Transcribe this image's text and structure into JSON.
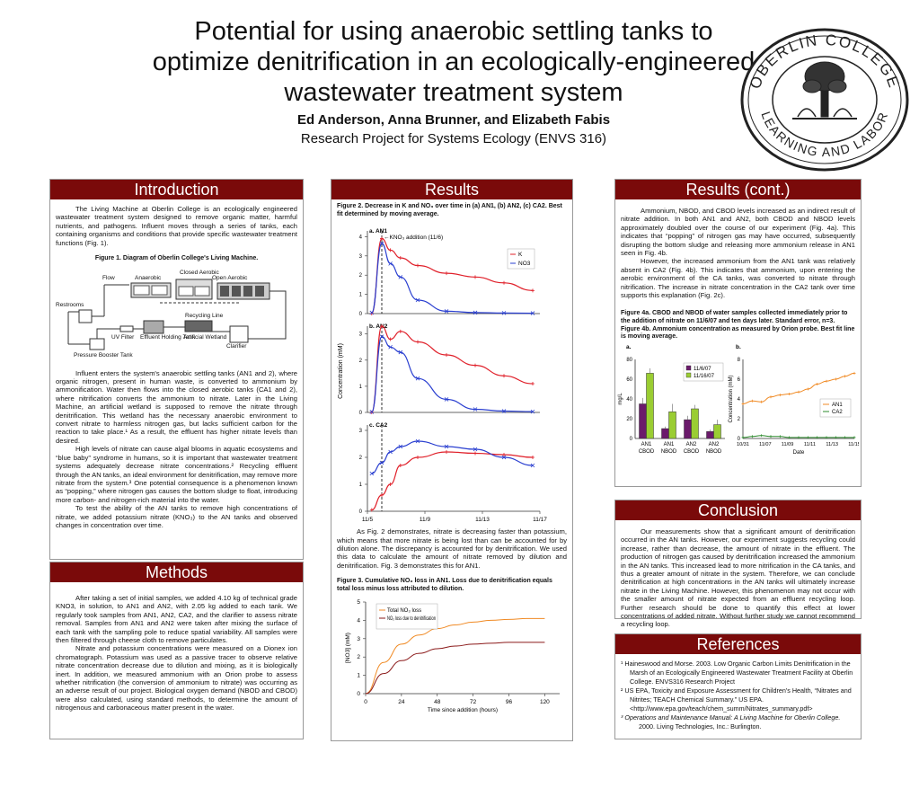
{
  "title": "Potential for using anaerobic settling tanks to optimize denitrification in an ecologically-engineered wastewater treatment system",
  "authors": "Ed Anderson, Anna Brunner, and Elizabeth Fabis",
  "course": "Research Project for Systems Ecology (ENVS 316)",
  "seal": {
    "outer_text": "OBERLIN COLLEGE",
    "inner_text": "LEARNING AND LABOR"
  },
  "intro": {
    "heading": "Introduction",
    "p1": "The Living Machine at Oberlin College is an ecologically engineered wastewater treatment system designed to remove organic matter, harmful nutrients, and pathogens. Influent moves through a series of tanks, each containing organisms and conditions that provide specific wastewater treatment functions (Fig. 1).",
    "fig1_caption": "Figure 1. Diagram of Oberlin College's Living Machine.",
    "fig1_labels": {
      "restrooms": "Restrooms",
      "flow": "Flow",
      "anaerobic": "Anaerobic",
      "closed_aerobic": "Closed Aerobic",
      "open_aerobic": "Open Aerobic",
      "recycling": "Recycling Line",
      "uv": "UV Filter",
      "effluent": "Effluent Holding Tank",
      "wetland": "Artificial Wetland",
      "clarifier": "Clarifier",
      "pressure": "Pressure Booster Tank"
    },
    "p2": "Influent enters the system's anaerobic settling tanks (AN1 and 2), where organic nitrogen, present in human waste, is converted to ammonium by ammonification. Water then flows into the closed aerobic tanks (CA1 and 2), where nitrification converts the ammonium to nitrate. Later in the Living Machine, an artificial wetland is supposed to remove the nitrate through denitrification. This wetland has the necessary anaerobic environment to convert nitrate to harmless nitrogen gas, but lacks sufficient carbon for the reaction to take place.¹ As a result, the effluent has higher nitrate levels than desired.",
    "p3": "High levels of nitrate can cause algal blooms in aquatic ecosystems and “blue baby” syndrome in humans, so it is important that wastewater treatment systems adequately decrease nitrate concentrations.² Recycling effluent through the AN tanks, an ideal environment for denitrification, may remove more nitrate from the system.³ One potential consequence is a phenomenon known as “popping,” where nitrogen gas causes the bottom sludge to float, introducing more carbon- and nitrogen-rich material into the water.",
    "p4": "To test the ability of the AN tanks to remove high concentrations of nitrate, we added potassium nitrate (KNO₃) to the AN tanks and observed changes in concentration over time."
  },
  "methods": {
    "heading": "Methods",
    "p1": "After taking a set of initial samples, we added 4.10 kg of technical grade KNO3, in solution, to AN1 and AN2, with 2.05 kg added to each tank. We regularly took samples from AN1, AN2, CA2, and the clarifier to assess nitrate removal. Samples from AN1 and AN2 were taken after mixing the surface of each tank with the sampling pole to reduce spatial variability. All samples were then filtered through cheese cloth to remove particulates.",
    "p2": "Nitrate and potassium concentrations were measured on a Dionex ion chromatograph. Potassium was used as a passive tracer to observe relative nitrate concentration decrease due to dilution and mixing, as it is biologically inert. In addition, we measured ammonium with an Orion probe to assess whether nitrification (the conversion of ammonium to nitrate) was occurring as an adverse result of our project. Biological oxygen demand (NBOD and CBOD) were also calculated, using standard methods, to determine the amount of nitrogenous and carbonaceous matter present in the water."
  },
  "results": {
    "heading": "Results",
    "fig2_caption": "Figure 2. Decrease in K and NO₃ over time in (a) AN1, (b) AN2, (c) CA2. Best fit determined by moving average.",
    "para": "As Fig. 2 demonstrates, nitrate is decreasing faster than potassium, which means that more nitrate is being lost than can be accounted for by dilution alone. The discrepancy is accounted for by denitrification. We used this data to calculate the amount of nitrate removed by dilution and denitrification. Fig. 3 demonstrates this for AN1.",
    "fig3_caption": "Figure 3. Cumulative NO₃ loss in AN1. Loss due to denitrification equals total loss minus loss attributed to dilution."
  },
  "results2": {
    "heading": "Results (cont.)",
    "p1": "Ammonium, NBOD, and CBOD levels increased as an indirect result of nitrate addition. In both AN1 and AN2, both CBOD and NBOD levels approximately doubled over the course of our experiment (Fig. 4a). This indicates that “popping” of nitrogen gas may have occurred, subsequently disrupting the bottom sludge and releasing more ammonium release in AN1 seen in Fig. 4b.",
    "p2": "However, the increased ammonium from the AN1 tank was relatively absent in CA2 (Fig. 4b). This indicates that ammonium, upon entering the aerobic environment of the CA tanks, was converted to nitrate through nitrification. The increase in nitrate concentration in the CA2 tank over time supports this explanation (Fig. 2c).",
    "fig4_caption": "Figure 4a. CBOD and NBOD of water samples collected immediately prior to the addition of nitrate on 11/6/07 and ten days later. Standard error, n=3. Figure 4b. Ammonium concentration as measured by Orion probe. Best fit line is moving average."
  },
  "conclusion": {
    "heading": "Conclusion",
    "p1": "Our measurements show that a significant amount of denitrification occurred in the AN tanks. However, our experiment suggests recycling could increase, rather than decrease, the amount of nitrate in the effluent. The production of nitrogen gas caused by denitrification increased the ammonium in the AN tanks. This increased lead to more nitrification in the CA tanks, and thus a greater amount of nitrate in the system. Therefore, we can conclude denitrification at high concentrations in the AN tanks will ultimately increase nitrate in the Living Machine. However, this phenomenon may not occur with the smaller amount of nitrate expected from an effluent recycling loop. Further research should be done to quantify this effect at lower concentrations of added nitrate. Without further study we cannot recommend a recycling loop."
  },
  "references": {
    "heading": "References",
    "r1": "¹ Haineswood and Morse.  2003.  Low Organic Carbon Limits Denitrification in the Marsh of an Ecologically Engineered Wastewater Treatment Facility at Oberlin College.  ENVS316 Research Project",
    "r2": "² US EPA, Toxicity and Exposure Assessment for Children's Health, “Nitrates and Nitrites; TEACH Chemical Summary.” US EPA. <http://www.epa.gov/teach/chem_summ/Nitrates_summary.pdf>",
    "r3a": "³ Operations and Maintenance Manual: A Living Machine for Oberlin College.",
    "r3b": "2000. Living Technologies, Inc.: Burlington."
  },
  "colors": {
    "banner": "#7a0a0a",
    "k": "#e0202a",
    "no3": "#2a3fd0",
    "orange": "#f08a24",
    "green": "#2e8b2e",
    "purple": "#6b1a6b",
    "lime": "#9acd32"
  },
  "chart_data": [
    {
      "type": "line",
      "title": "a. AN1",
      "ylabel": "Concentration (mM)",
      "xlabel": "",
      "ylim": [
        0,
        4.3
      ],
      "x_ticks": [
        "11/5",
        "11/9",
        "11/13",
        "11/17"
      ],
      "annotation": "←KNO₃ addition (11/6)",
      "series": [
        {
          "name": "K",
          "x": [
            5.3,
            6.0,
            6.6,
            7.3,
            8.5,
            10.5,
            12.5,
            14.5,
            16.5
          ],
          "values": [
            0.0,
            3.9,
            3.3,
            2.9,
            2.5,
            2.1,
            1.9,
            1.6,
            1.2
          ]
        },
        {
          "name": "NO3",
          "x": [
            5.3,
            6.0,
            6.6,
            7.3,
            8.5,
            10.5,
            12.5,
            14.5,
            16.5
          ],
          "values": [
            0.05,
            3.65,
            2.6,
            1.9,
            0.7,
            0.12,
            0.05,
            0.03,
            0.02
          ]
        }
      ]
    },
    {
      "type": "line",
      "title": "b. AN2",
      "ylabel": "Concentration (mM)",
      "ylim": [
        0,
        3.3
      ],
      "x_ticks": [
        "11/5",
        "11/9",
        "11/13",
        "11/17"
      ],
      "series": [
        {
          "name": "K",
          "x": [
            5.3,
            6.0,
            6.6,
            7.3,
            8.5,
            10.5,
            12.5,
            14.5,
            16.5
          ],
          "values": [
            0.0,
            3.3,
            2.8,
            3.1,
            2.7,
            2.2,
            1.8,
            1.4,
            1.1
          ]
        },
        {
          "name": "NO3",
          "x": [
            5.3,
            6.0,
            6.6,
            7.3,
            8.5,
            10.5,
            12.5,
            14.5,
            16.5
          ],
          "values": [
            0.02,
            2.9,
            2.5,
            2.3,
            1.3,
            0.5,
            0.12,
            0.05,
            0.03
          ]
        }
      ]
    },
    {
      "type": "line",
      "title": "c. CA2",
      "ylabel": "Concentration (mM)",
      "ylim": [
        0,
        3.2
      ],
      "x_ticks": [
        "11/5",
        "11/9",
        "11/13",
        "11/17"
      ],
      "series": [
        {
          "name": "K",
          "x": [
            5.3,
            6.0,
            6.6,
            7.3,
            8.5,
            10.5,
            12.5,
            14.5,
            16.5
          ],
          "values": [
            0.05,
            0.6,
            1.0,
            1.7,
            2.0,
            2.2,
            2.15,
            2.1,
            2.0
          ]
        },
        {
          "name": "NO3",
          "x": [
            5.3,
            6.0,
            6.6,
            7.3,
            8.5,
            10.5,
            12.5,
            14.5,
            16.5
          ],
          "values": [
            1.4,
            1.8,
            2.2,
            2.4,
            2.6,
            2.4,
            2.3,
            2.0,
            1.7
          ]
        }
      ]
    },
    {
      "type": "line",
      "title": "",
      "xlabel": "Time since addition (hours)",
      "ylabel": "[NO3] (mM)",
      "xlim": [
        0,
        130
      ],
      "ylim": [
        0,
        5
      ],
      "x_ticks": [
        0,
        24,
        48,
        72,
        96,
        120
      ],
      "y_ticks": [
        0,
        1,
        2,
        3,
        4,
        5
      ],
      "series": [
        {
          "name": "Total NO₃ loss",
          "x": [
            0,
            12,
            24,
            36,
            48,
            60,
            72,
            84,
            96,
            108,
            120
          ],
          "values": [
            0,
            1.7,
            2.7,
            3.2,
            3.55,
            3.75,
            3.9,
            4.0,
            4.05,
            4.1,
            4.1
          ]
        },
        {
          "name": "NO₃ loss due to denitrification",
          "x": [
            0,
            12,
            24,
            36,
            48,
            60,
            72,
            84,
            96,
            108,
            120
          ],
          "values": [
            0,
            1.1,
            1.8,
            2.2,
            2.45,
            2.6,
            2.7,
            2.75,
            2.8,
            2.8,
            2.8
          ]
        }
      ]
    },
    {
      "type": "bar",
      "title": "a.",
      "ylabel": "mg/L",
      "ylim": [
        0,
        80
      ],
      "y_ticks": [
        0,
        20,
        40,
        60,
        80
      ],
      "categories": [
        "AN1 CBOD",
        "AN1 NBOD",
        "AN2 CBOD",
        "AN2 NBOD"
      ],
      "series": [
        {
          "name": "11/6/07",
          "values": [
            35,
            10,
            19,
            7
          ],
          "errors": [
            6,
            2,
            4,
            2
          ]
        },
        {
          "name": "11/16/07",
          "values": [
            66,
            27,
            30,
            14
          ],
          "errors": [
            5,
            8,
            4,
            5
          ]
        }
      ]
    },
    {
      "type": "line",
      "title": "b.",
      "ylabel": "Concentration (mM)",
      "xlabel": "Date",
      "ylim": [
        0,
        8
      ],
      "y_ticks": [
        0,
        2,
        4,
        6,
        8
      ],
      "x_ticks": [
        "10/31",
        "11/07",
        "11/09",
        "11/11",
        "11/13",
        "11/15"
      ],
      "series": [
        {
          "name": "AN1",
          "x": [
            0,
            0.5,
            1,
            1.5,
            2,
            2.5,
            3,
            3.5,
            4,
            4.5,
            5,
            5.5,
            6
          ],
          "values": [
            3.5,
            3.8,
            3.7,
            4.2,
            4.4,
            4.5,
            4.7,
            5.0,
            5.5,
            5.8,
            6.0,
            6.3,
            6.6
          ]
        },
        {
          "name": "CA2",
          "x": [
            0,
            0.5,
            1,
            1.5,
            2,
            2.5,
            3,
            3.5,
            4,
            4.5,
            5,
            5.5,
            6
          ],
          "values": [
            0.1,
            0.2,
            0.3,
            0.2,
            0.2,
            0.1,
            0.1,
            0.1,
            0.1,
            0.1,
            0.1,
            0.1,
            0.1
          ]
        }
      ]
    }
  ]
}
